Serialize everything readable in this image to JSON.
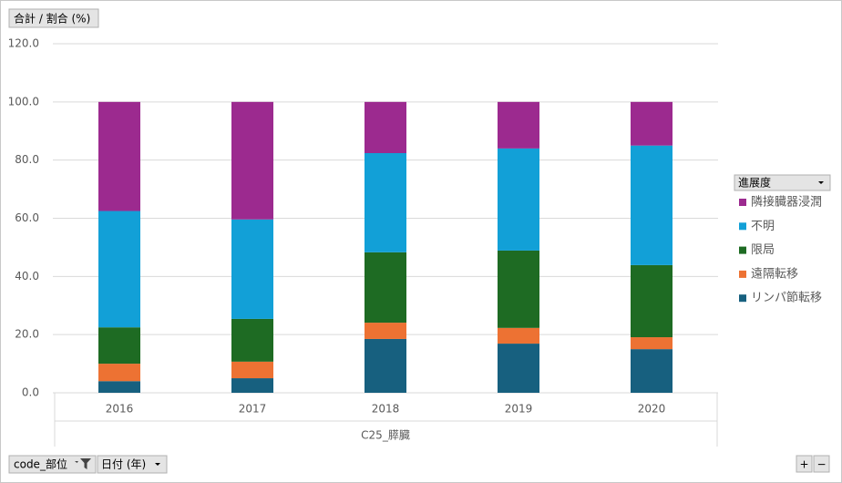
{
  "value_field": "合計 / 割合 (%)",
  "filter_buttons": [
    "code_部位",
    "日付 (年)"
  ],
  "zoom_buttons": [
    "+",
    "−"
  ],
  "chart_data": {
    "type": "stacked_bar",
    "categories": [
      "2016",
      "2017",
      "2018",
      "2019",
      "2020"
    ],
    "group_label": "C25_膵臓",
    "legend_title": "進展度",
    "ylim": [
      0,
      120
    ],
    "yticks": [
      {
        "value": 0,
        "label": "0.0"
      },
      {
        "value": 20,
        "label": "20.0"
      },
      {
        "value": 40,
        "label": "40.0"
      },
      {
        "value": 60,
        "label": "60.0"
      },
      {
        "value": 80,
        "label": "80.0"
      },
      {
        "value": 100,
        "label": "100.0"
      },
      {
        "value": 120,
        "label": "120.0"
      }
    ],
    "grid": true,
    "legend": "right",
    "series": [
      {
        "name": "リンパ節転移",
        "color": "#17607f",
        "values": [
          4,
          5,
          18.5,
          16.9,
          15
        ]
      },
      {
        "name": "遠隔転移",
        "color": "#ed7233",
        "values": [
          6,
          5.7,
          5.6,
          5.4,
          4.1
        ]
      },
      {
        "name": "限局",
        "color": "#1e6b23",
        "values": [
          12.5,
          14.7,
          24.2,
          26.6,
          24.8
        ]
      },
      {
        "name": "不明",
        "color": "#12a0d7",
        "values": [
          40,
          34.2,
          34.1,
          35.1,
          41.1
        ]
      },
      {
        "name": "隣接臓器浸潤",
        "color": "#9c2a8f",
        "values": [
          37.5,
          40.4,
          17.6,
          16,
          15
        ]
      }
    ]
  }
}
